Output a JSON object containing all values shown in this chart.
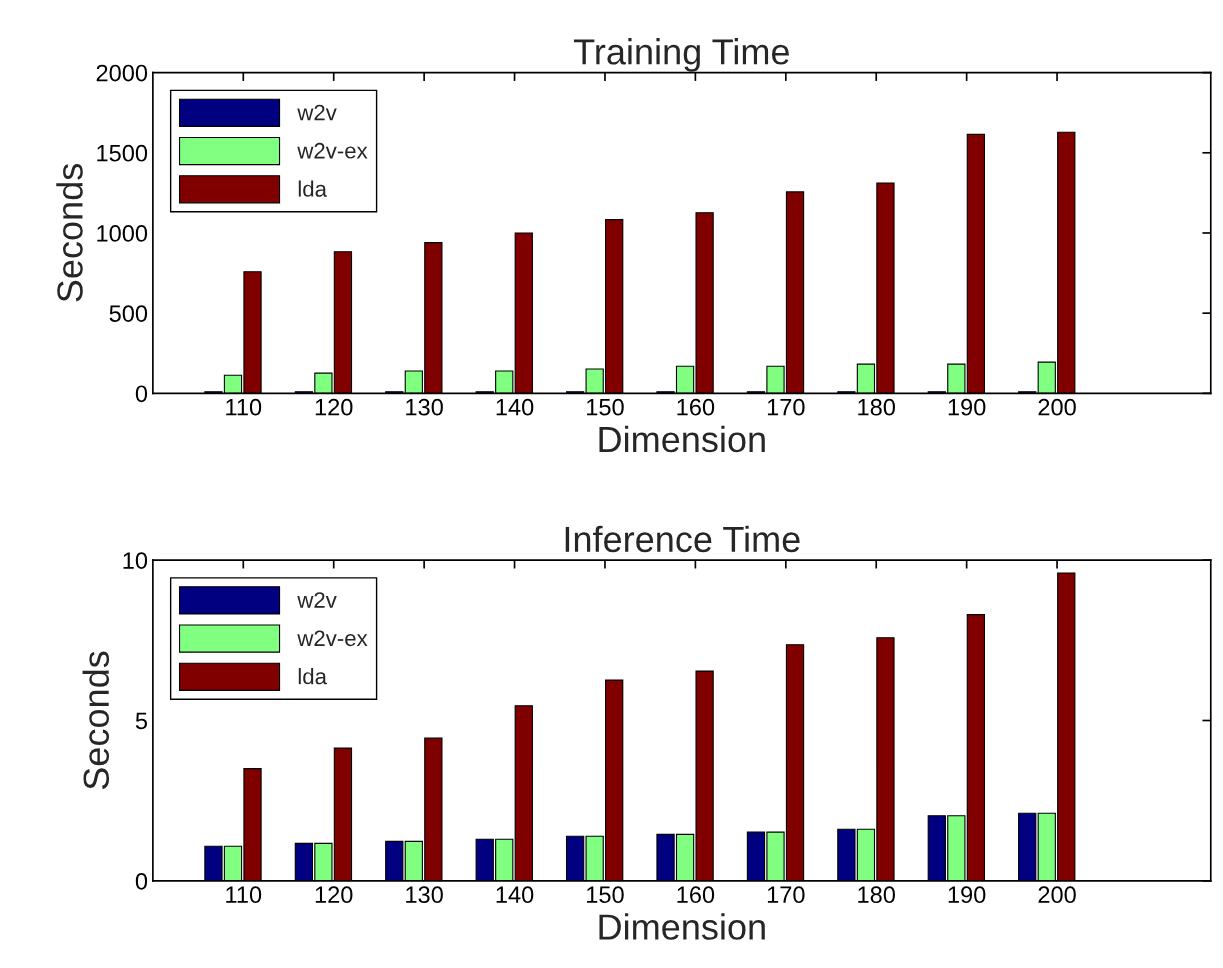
{
  "chart_data": [
    {
      "type": "bar",
      "title": "Training Time",
      "xlabel": "Dimension",
      "ylabel": "Seconds",
      "x": [
        110,
        120,
        130,
        140,
        150,
        160,
        170,
        180,
        190,
        200
      ],
      "xlim": [
        100,
        217
      ],
      "xticks": [
        110,
        120,
        130,
        140,
        150,
        160,
        170,
        180,
        190,
        200
      ],
      "ylim": [
        0,
        2000
      ],
      "yticks": [
        0,
        500,
        1000,
        1500,
        2000
      ],
      "legend": "top left",
      "grid": false,
      "series": [
        {
          "name": "w2v",
          "color": "#000080",
          "values": [
            10,
            10,
            10,
            10,
            10,
            10,
            10,
            10,
            10,
            10
          ]
        },
        {
          "name": "w2v-ex",
          "color": "#80ff80",
          "values": [
            113,
            126,
            139,
            139,
            152,
            169,
            169,
            182,
            182,
            195
          ]
        },
        {
          "name": "lda",
          "color": "#800000",
          "values": [
            758,
            883,
            940,
            1000,
            1083,
            1126,
            1256,
            1312,
            1615,
            1628
          ]
        }
      ]
    },
    {
      "type": "bar",
      "title": "Inference Time",
      "xlabel": "Dimension",
      "ylabel": "Seconds",
      "x": [
        110,
        120,
        130,
        140,
        150,
        160,
        170,
        180,
        190,
        200
      ],
      "xlim": [
        100,
        217
      ],
      "xticks": [
        110,
        120,
        130,
        140,
        150,
        160,
        170,
        180,
        190,
        200
      ],
      "ylim": [
        0,
        10
      ],
      "yticks": [
        0,
        5,
        10
      ],
      "legend": "top left",
      "grid": false,
      "series": [
        {
          "name": "w2v",
          "color": "#000080",
          "values": [
            1.08,
            1.17,
            1.23,
            1.3,
            1.39,
            1.45,
            1.52,
            1.61,
            2.03,
            2.11
          ]
        },
        {
          "name": "w2v-ex",
          "color": "#80ff80",
          "values": [
            1.08,
            1.17,
            1.23,
            1.3,
            1.39,
            1.45,
            1.52,
            1.61,
            2.03,
            2.11
          ]
        },
        {
          "name": "lda",
          "color": "#800000",
          "values": [
            3.5,
            4.14,
            4.45,
            5.46,
            6.26,
            6.54,
            7.36,
            7.58,
            8.3,
            9.6
          ]
        }
      ]
    }
  ]
}
